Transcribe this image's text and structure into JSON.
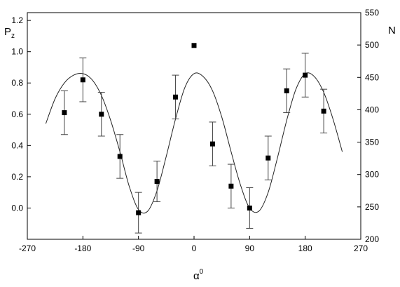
{
  "chart_data": {
    "type": "scatter",
    "title": "",
    "xlabel": "α",
    "xlabel_sup": "0",
    "ylabel": "P",
    "ylabel_sub": "z",
    "y2label": "N",
    "xlim": [
      -270,
      270
    ],
    "ylim": [
      -0.2,
      1.25
    ],
    "y2lim": [
      200,
      550
    ],
    "xticks": [
      -270,
      -180,
      -90,
      0,
      90,
      180,
      270
    ],
    "xtick_labels": [
      "-270",
      "-180",
      "-90",
      "0",
      "90",
      "180",
      "270"
    ],
    "yticks": [
      0.0,
      0.2,
      0.4,
      0.6,
      0.8,
      1.0,
      1.2
    ],
    "ytick_labels": [
      "0.0",
      "0.2",
      "0.4",
      "0.6",
      "0.8",
      "1.0",
      "1.2"
    ],
    "y2ticks": [
      200,
      250,
      300,
      350,
      400,
      450,
      500,
      550
    ],
    "y2tick_labels": [
      "200",
      "250",
      "300",
      "350",
      "400",
      "450",
      "500",
      "550"
    ],
    "grid": false,
    "legend": "none",
    "series": [
      {
        "marker": "square",
        "x": [
          -210,
          -180,
          -150,
          -120,
          -90,
          -60,
          -30,
          0,
          30,
          60,
          90,
          120,
          150,
          180,
          210
        ],
        "y": [
          0.61,
          0.82,
          0.6,
          0.33,
          -0.03,
          0.17,
          0.71,
          1.04,
          0.41,
          0.14,
          0.0,
          0.32,
          0.75,
          0.85,
          0.62
        ],
        "err": [
          0.14,
          0.14,
          0.14,
          0.14,
          0.13,
          0.13,
          0.14,
          null,
          0.14,
          0.14,
          0.13,
          0.14,
          0.14,
          0.14,
          0.14
        ]
      }
    ],
    "fit_curve": {
      "style": "line",
      "x": [
        -240,
        -225,
        -210,
        -195,
        -180,
        -165,
        -150,
        -135,
        -120,
        -105,
        -90,
        -75,
        -60,
        -45,
        -30,
        -15,
        0,
        15,
        30,
        45,
        60,
        75,
        90,
        105,
        120,
        135,
        150,
        165,
        180,
        195,
        210,
        225,
        240
      ],
      "y": [
        0.54,
        0.7,
        0.8,
        0.85,
        0.86,
        0.82,
        0.72,
        0.56,
        0.36,
        0.14,
        -0.01,
        -0.02,
        0.11,
        0.33,
        0.57,
        0.77,
        0.86,
        0.84,
        0.75,
        0.58,
        0.36,
        0.15,
        0.0,
        -0.02,
        0.1,
        0.32,
        0.56,
        0.76,
        0.86,
        0.84,
        0.74,
        0.57,
        0.36
      ]
    }
  }
}
